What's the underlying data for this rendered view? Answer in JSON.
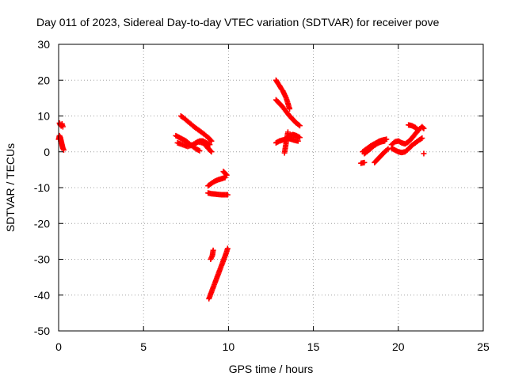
{
  "chart_data": {
    "type": "scatter",
    "title": "Day 011 of 2023, Sidereal Day-to-day VTEC variation (SDTVAR) for receiver pove",
    "xlabel": "GPS time / hours",
    "ylabel": "SDTVAR / TECUs",
    "xlim": [
      0,
      25
    ],
    "ylim": [
      -50,
      30
    ],
    "xticks": [
      0,
      5,
      10,
      15,
      20,
      25
    ],
    "yticks": [
      -50,
      -40,
      -30,
      -20,
      -10,
      0,
      10,
      20,
      30
    ],
    "grid": true,
    "marker": "plus",
    "color": "#ff0000",
    "series": [
      {
        "segments": [
          [
            [
              0.05,
              8.0
            ],
            [
              0.1,
              7.5
            ],
            [
              0.15,
              7.2
            ],
            [
              0.2,
              7.8
            ],
            [
              0.25,
              7.0
            ]
          ],
          [
            [
              0.0,
              3.5
            ],
            [
              0.05,
              4.5
            ],
            [
              0.1,
              4.0
            ],
            [
              0.15,
              3.0
            ],
            [
              0.2,
              2.0
            ],
            [
              0.25,
              1.0
            ],
            [
              0.3,
              0.5
            ]
          ],
          [
            [
              7.2,
              10.0
            ],
            [
              7.4,
              9.3
            ],
            [
              7.6,
              8.5
            ],
            [
              7.8,
              7.7
            ],
            [
              8.0,
              6.9
            ],
            [
              8.2,
              6.2
            ],
            [
              8.4,
              5.5
            ],
            [
              8.6,
              4.8
            ],
            [
              8.8,
              4.0
            ],
            [
              9.0,
              3.0
            ]
          ],
          [
            [
              6.9,
              4.5
            ],
            [
              7.1,
              4.0
            ],
            [
              7.3,
              3.5
            ],
            [
              7.5,
              3.0
            ],
            [
              7.7,
              2.2
            ],
            [
              7.9,
              1.5
            ],
            [
              8.1,
              0.8
            ],
            [
              8.3,
              0.3
            ]
          ],
          [
            [
              7.0,
              2.5
            ],
            [
              7.3,
              2.0
            ],
            [
              7.6,
              1.5
            ],
            [
              7.9,
              2.0
            ],
            [
              8.2,
              2.8
            ],
            [
              8.5,
              2.5
            ],
            [
              8.8,
              1.0
            ],
            [
              9.0,
              0.0
            ]
          ],
          [
            [
              8.1,
              2.5
            ],
            [
              8.3,
              3.0
            ],
            [
              8.5,
              3.0
            ],
            [
              8.7,
              2.5
            ],
            [
              8.9,
              2.0
            ]
          ],
          [
            [
              8.8,
              -9.5
            ],
            [
              9.0,
              -8.8
            ],
            [
              9.2,
              -8.2
            ],
            [
              9.4,
              -7.8
            ],
            [
              9.6,
              -7.5
            ],
            [
              9.8,
              -7.2
            ]
          ],
          [
            [
              9.7,
              -5.5
            ],
            [
              9.8,
              -6.0
            ],
            [
              9.9,
              -6.5
            ]
          ],
          [
            [
              8.8,
              -11.5
            ],
            [
              9.0,
              -11.7
            ],
            [
              9.2,
              -11.8
            ],
            [
              9.4,
              -11.9
            ],
            [
              9.6,
              -12.0
            ],
            [
              9.8,
              -12.0
            ],
            [
              9.95,
              -12.0
            ]
          ],
          [
            [
              8.95,
              -30.0
            ],
            [
              9.05,
              -29.0
            ],
            [
              9.1,
              -27.5
            ]
          ],
          [
            [
              8.85,
              -41.0
            ],
            [
              9.05,
              -38.5
            ],
            [
              9.25,
              -36.0
            ],
            [
              9.45,
              -33.5
            ],
            [
              9.65,
              -31.0
            ],
            [
              9.85,
              -28.5
            ],
            [
              9.95,
              -27.0
            ]
          ],
          [
            [
              12.8,
              20.0
            ],
            [
              12.9,
              19.2
            ],
            [
              13.0,
              18.5
            ],
            [
              13.1,
              17.7
            ],
            [
              13.2,
              17.0
            ],
            [
              13.3,
              16.0
            ],
            [
              13.4,
              15.0
            ],
            [
              13.5,
              13.5
            ],
            [
              13.6,
              12.0
            ]
          ],
          [
            [
              12.8,
              14.5
            ],
            [
              13.0,
              13.5
            ],
            [
              13.2,
              12.5
            ],
            [
              13.4,
              11.2
            ],
            [
              13.6,
              10.0
            ],
            [
              13.8,
              9.0
            ],
            [
              14.0,
              8.0
            ],
            [
              14.2,
              7.3
            ]
          ],
          [
            [
              12.8,
              2.5
            ],
            [
              13.0,
              3.0
            ],
            [
              13.2,
              3.3
            ],
            [
              13.4,
              3.5
            ],
            [
              13.6,
              4.5
            ],
            [
              13.8,
              4.8
            ],
            [
              14.0,
              4.5
            ],
            [
              14.2,
              4.0
            ]
          ],
          [
            [
              13.3,
              3.0
            ],
            [
              13.5,
              3.8
            ],
            [
              13.7,
              3.5
            ],
            [
              13.9,
              3.2
            ],
            [
              14.1,
              3.0
            ]
          ],
          [
            [
              13.3,
              -0.3
            ],
            [
              13.5,
              5.5
            ]
          ],
          [
            [
              17.9,
              0.0
            ],
            [
              18.1,
              0.7
            ],
            [
              18.3,
              1.4
            ],
            [
              18.5,
              2.0
            ],
            [
              18.7,
              2.5
            ],
            [
              18.9,
              3.0
            ],
            [
              19.1,
              3.3
            ],
            [
              19.3,
              3.5
            ]
          ],
          [
            [
              18.0,
              -0.5
            ],
            [
              18.2,
              0.2
            ],
            [
              18.4,
              1.0
            ],
            [
              18.6,
              1.8
            ],
            [
              18.8,
              2.4
            ],
            [
              19.0,
              2.8
            ],
            [
              19.2,
              3.0
            ]
          ],
          [
            [
              17.8,
              -3.2
            ],
            [
              18.0,
              -3.0
            ]
          ],
          [
            [
              18.6,
              -3.0
            ],
            [
              18.8,
              -2.0
            ],
            [
              19.0,
              -1.0
            ],
            [
              19.2,
              0.0
            ],
            [
              19.4,
              0.8
            ]
          ],
          [
            [
              19.6,
              2.0
            ],
            [
              19.8,
              2.8
            ],
            [
              20.0,
              3.0
            ],
            [
              20.2,
              2.5
            ],
            [
              20.4,
              2.2
            ],
            [
              20.6,
              2.8
            ],
            [
              20.8,
              3.8
            ],
            [
              21.0,
              5.0
            ],
            [
              21.2,
              6.2
            ],
            [
              21.4,
              7.0
            ],
            [
              21.5,
              6.5
            ]
          ],
          [
            [
              19.6,
              1.0
            ],
            [
              19.8,
              0.5
            ],
            [
              20.0,
              0.0
            ],
            [
              20.2,
              -0.2
            ],
            [
              20.4,
              0.0
            ],
            [
              20.6,
              0.8
            ],
            [
              20.8,
              1.8
            ],
            [
              21.0,
              2.5
            ],
            [
              21.2,
              3.2
            ],
            [
              21.4,
              3.8
            ]
          ],
          [
            [
              20.6,
              7.5
            ],
            [
              20.8,
              7.3
            ],
            [
              21.0,
              6.8
            ],
            [
              21.2,
              6.0
            ]
          ],
          [
            [
              21.5,
              -0.5
            ]
          ]
        ]
      }
    ]
  }
}
